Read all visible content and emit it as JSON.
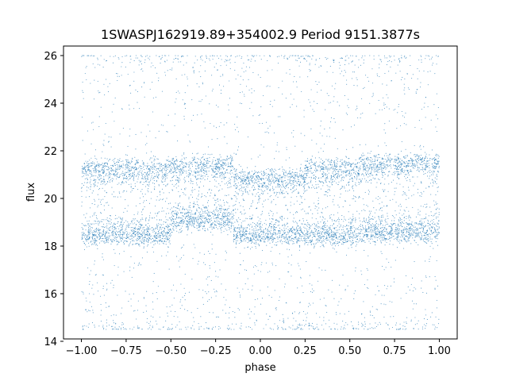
{
  "chart_data": {
    "type": "scatter",
    "title": "1SWASPJ162919.89+354002.9 Period 9151.3877s",
    "xlabel": "phase",
    "ylabel": "flux",
    "xlim": [
      -1.1,
      1.1
    ],
    "ylim": [
      14.1,
      26.4
    ],
    "xticks": [
      -1.0,
      -0.75,
      -0.5,
      -0.25,
      0.0,
      0.25,
      0.5,
      0.75,
      1.0
    ],
    "xtick_labels": [
      "−1.00",
      "−0.75",
      "−0.50",
      "−0.25",
      "0.00",
      "0.25",
      "0.50",
      "0.75",
      "1.00"
    ],
    "yticks": [
      14,
      16,
      18,
      20,
      22,
      24,
      26
    ],
    "ytick_labels": [
      "14",
      "16",
      "18",
      "20",
      "22",
      "24",
      "26"
    ],
    "grid": false,
    "legend": "none",
    "series": [
      {
        "color": "#1f77b4",
        "x_range": [
          -1.0,
          1.0
        ],
        "bands": [
          {
            "phase": [
              -1.0,
              -0.5
            ],
            "flux": [
              18.2,
              21.5
            ],
            "density": "high"
          },
          {
            "phase": [
              -0.5,
              -0.15
            ],
            "flux": [
              18.8,
              21.6
            ],
            "density": "high"
          },
          {
            "phase": [
              -0.15,
              0.25
            ],
            "flux": [
              18.2,
              21.1
            ],
            "density": "high"
          },
          {
            "phase": [
              0.25,
              0.55
            ],
            "flux": [
              18.2,
              21.5
            ],
            "density": "high"
          },
          {
            "phase": [
              0.55,
              1.0
            ],
            "flux": [
              18.3,
              21.7
            ],
            "density": "high"
          }
        ],
        "outlier_flux_range": [
          14.5,
          26.0
        ]
      }
    ]
  }
}
